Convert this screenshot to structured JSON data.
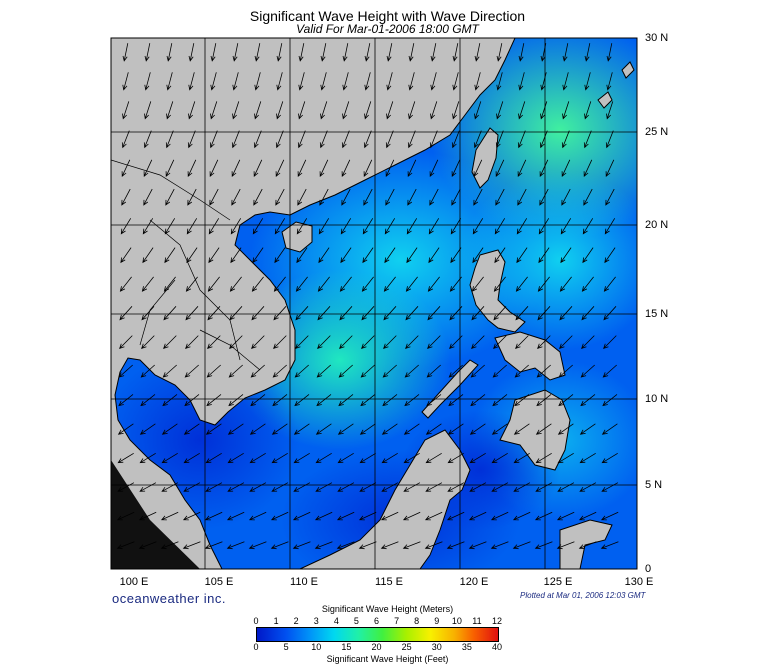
{
  "header": {
    "title": "Significant Wave Height with Wave Direction",
    "subtitle": "Valid For Mar-01-2006 18:00 GMT"
  },
  "map": {
    "lon_labels": [
      "100 E",
      "105 E",
      "110 E",
      "115 E",
      "120 E",
      "125 E",
      "130 E"
    ],
    "lat_labels": [
      "30 N",
      "25 N",
      "20 N",
      "15 N",
      "10 N",
      "5 N",
      "0"
    ],
    "lon_range": [
      99,
      130
    ],
    "lat_range": [
      0,
      30
    ],
    "land_color": "#c0c0c0",
    "grid": true,
    "arrow_direction": "toward south-southwest"
  },
  "footer": {
    "brand": "oceanweather inc.",
    "plotted": "Plotted at Mar 01, 2006 12:03 GMT"
  },
  "colorbar": {
    "title_meters": "Significant Wave Height (Meters)",
    "title_feet": "Significant Wave Height (Feet)",
    "meter_ticks": [
      "0",
      "1",
      "2",
      "3",
      "4",
      "5",
      "6",
      "7",
      "8",
      "9",
      "10",
      "11",
      "12"
    ],
    "feet_ticks": [
      "0",
      "5",
      "10",
      "15",
      "20",
      "25",
      "30",
      "35",
      "40"
    ],
    "colors": [
      "#0018c8",
      "#0050f0",
      "#0094f8",
      "#00d8f0",
      "#20f0a8",
      "#40f040",
      "#a8f000",
      "#f8f000",
      "#f8b000",
      "#f86000",
      "#e01010"
    ]
  }
}
